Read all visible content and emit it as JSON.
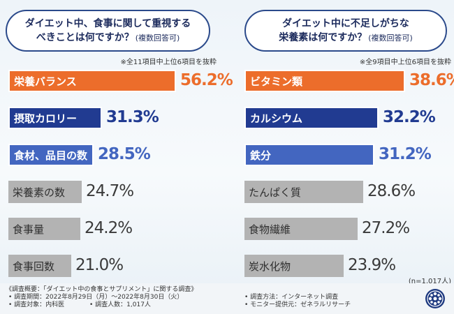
{
  "left": {
    "title_line1": "ダイエット中、食事に関して重視する",
    "title_line2": "べきことは何ですか？",
    "title_note": "(複数回答可)",
    "note": "※全11項目中上位6項目を抜粋",
    "bars": [
      {
        "label": "栄養バランス",
        "value": 56.2,
        "display": "56.2%"
      },
      {
        "label": "摂取カロリー",
        "value": 31.3,
        "display": "31.3%"
      },
      {
        "label": "食材、品目の数",
        "value": 28.5,
        "display": "28.5%"
      },
      {
        "label": "栄養素の数",
        "value": 24.7,
        "display": "24.7%"
      },
      {
        "label": "食事量",
        "value": 24.2,
        "display": "24.2%"
      },
      {
        "label": "食事回数",
        "value": 21.0,
        "display": "21.0%"
      }
    ]
  },
  "right": {
    "title_line1": "ダイエット中に不足しがちな",
    "title_line2": "栄養素は何ですか？",
    "title_note": "(複数回答可)",
    "note": "※全9項目中上位6項目を抜粋",
    "bars": [
      {
        "label": "ビタミン類",
        "value": 38.6,
        "display": "38.6%"
      },
      {
        "label": "カルシウム",
        "value": 32.2,
        "display": "32.2%"
      },
      {
        "label": "鉄分",
        "value": 31.2,
        "display": "31.2%"
      },
      {
        "label": "たんぱく質",
        "value": 28.6,
        "display": "28.6%"
      },
      {
        "label": "食物繊維",
        "value": 27.2,
        "display": "27.2%"
      },
      {
        "label": "炭水化物",
        "value": 23.9,
        "display": "23.9%"
      }
    ]
  },
  "n_label": "(n=1,017人)",
  "footer": {
    "summary": "《調査概要：「ダイエット中の食事とサプリメント」に関する調査》",
    "period": "• 調査期間：2022年8月29日（月）～2022年8月30日（火）",
    "method": "• 調査方法：インターネット調査",
    "target": "• 調査対象：内科医",
    "count": "• 調査人数：1,017人",
    "provider": "• モニター提供元：ゼネラルリサーチ"
  },
  "colors": {
    "rank1": "#ec6d2b",
    "rank2": "#213b91",
    "rank3": "#4366c0",
    "other": "#b3b3b3"
  },
  "chart_data": [
    {
      "type": "bar",
      "title": "ダイエット中、食事に関して重視するべきことは何ですか？(複数回答可)",
      "categories": [
        "栄養バランス",
        "摂取カロリー",
        "食材、品目の数",
        "栄養素の数",
        "食事量",
        "食事回数"
      ],
      "values": [
        56.2,
        31.3,
        28.5,
        24.7,
        24.2,
        21.0
      ],
      "unit": "%",
      "orientation": "horizontal"
    },
    {
      "type": "bar",
      "title": "ダイエット中に不足しがちな栄養素は何ですか？(複数回答可)",
      "categories": [
        "ビタミン類",
        "カルシウム",
        "鉄分",
        "たんぱく質",
        "食物繊維",
        "炭水化物"
      ],
      "values": [
        38.6,
        32.2,
        31.2,
        28.6,
        27.2,
        23.9
      ],
      "unit": "%",
      "orientation": "horizontal"
    }
  ]
}
